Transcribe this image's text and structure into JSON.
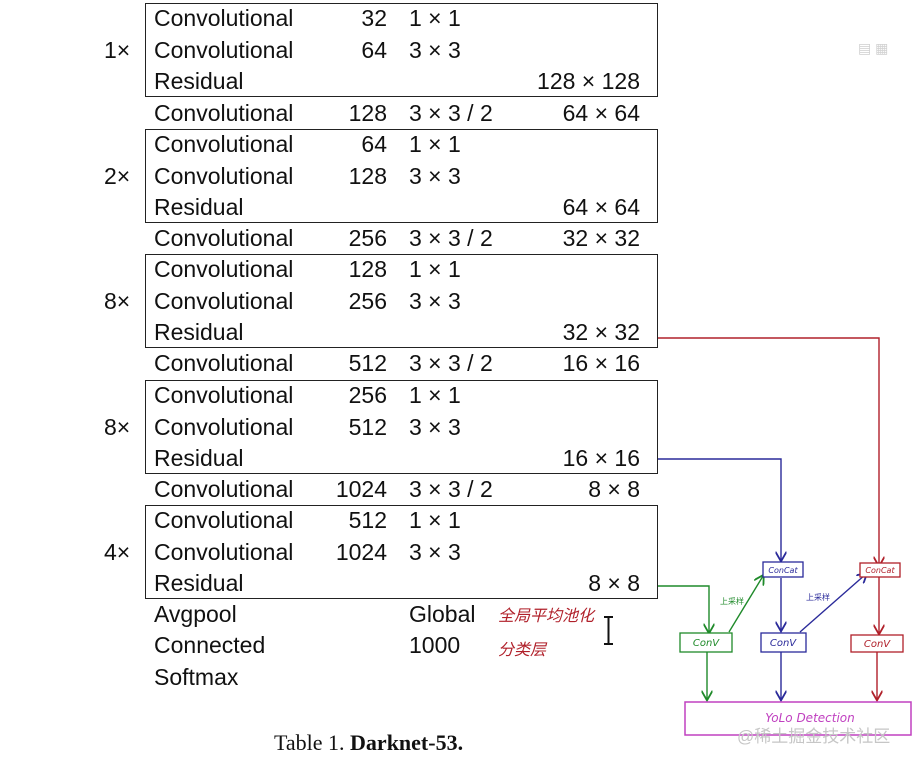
{
  "rows": [
    {
      "type": "Convolutional",
      "filters": "32",
      "size": "1 × 1",
      "output": ""
    },
    {
      "type": "Convolutional",
      "filters": "64",
      "size": "3 × 3",
      "output": ""
    },
    {
      "type": "Residual",
      "filters": "",
      "size": "",
      "output": "128 × 128"
    },
    {
      "type": "Convolutional",
      "filters": "128",
      "size": "3 × 3 / 2",
      "output": "64 × 64"
    },
    {
      "type": "Convolutional",
      "filters": "64",
      "size": "1 × 1",
      "output": ""
    },
    {
      "type": "Convolutional",
      "filters": "128",
      "size": "3 × 3",
      "output": ""
    },
    {
      "type": "Residual",
      "filters": "",
      "size": "",
      "output": "64 × 64"
    },
    {
      "type": "Convolutional",
      "filters": "256",
      "size": "3 × 3 / 2",
      "output": "32 × 32"
    },
    {
      "type": "Convolutional",
      "filters": "128",
      "size": "1 × 1",
      "output": ""
    },
    {
      "type": "Convolutional",
      "filters": "256",
      "size": "3 × 3",
      "output": ""
    },
    {
      "type": "Residual",
      "filters": "",
      "size": "",
      "output": "32 × 32"
    },
    {
      "type": "Convolutional",
      "filters": "512",
      "size": "3 × 3 / 2",
      "output": "16 × 16"
    },
    {
      "type": "Convolutional",
      "filters": "256",
      "size": "1 × 1",
      "output": ""
    },
    {
      "type": "Convolutional",
      "filters": "512",
      "size": "3 × 3",
      "output": ""
    },
    {
      "type": "Residual",
      "filters": "",
      "size": "",
      "output": "16 × 16"
    },
    {
      "type": "Convolutional",
      "filters": "1024",
      "size": "3 × 3 / 2",
      "output": "8 × 8"
    },
    {
      "type": "Convolutional",
      "filters": "512",
      "size": "1 × 1",
      "output": ""
    },
    {
      "type": "Convolutional",
      "filters": "1024",
      "size": "3 × 3",
      "output": ""
    },
    {
      "type": "Residual",
      "filters": "",
      "size": "",
      "output": "8 × 8"
    },
    {
      "type": "Avgpool",
      "filters": "",
      "size": "Global",
      "output": ""
    },
    {
      "type": "Connected",
      "filters": "",
      "size": "1000",
      "output": ""
    },
    {
      "type": "Softmax",
      "filters": "",
      "size": "",
      "output": ""
    }
  ],
  "blocks": [
    {
      "multiplier": "1×"
    },
    {
      "multiplier": "2×"
    },
    {
      "multiplier": "8×"
    },
    {
      "multiplier": "8×"
    },
    {
      "multiplier": "4×"
    }
  ],
  "annotations": {
    "avgpool_note": "全局平均池化",
    "connected_note": "分类层"
  },
  "detector": {
    "concat_label": "ConCat",
    "conv_label": "ConV",
    "upsample_label": "上采样",
    "detection_label": "YoLo Detection"
  },
  "caption": {
    "prefix": "Table 1.",
    "title": "Darknet-53."
  },
  "watermark": "@稀土掘金技术社区",
  "colors": {
    "red": "#b0202a",
    "blue": "#2a2a9a",
    "green": "#1f8a2a",
    "magenta": "#c040c0"
  }
}
